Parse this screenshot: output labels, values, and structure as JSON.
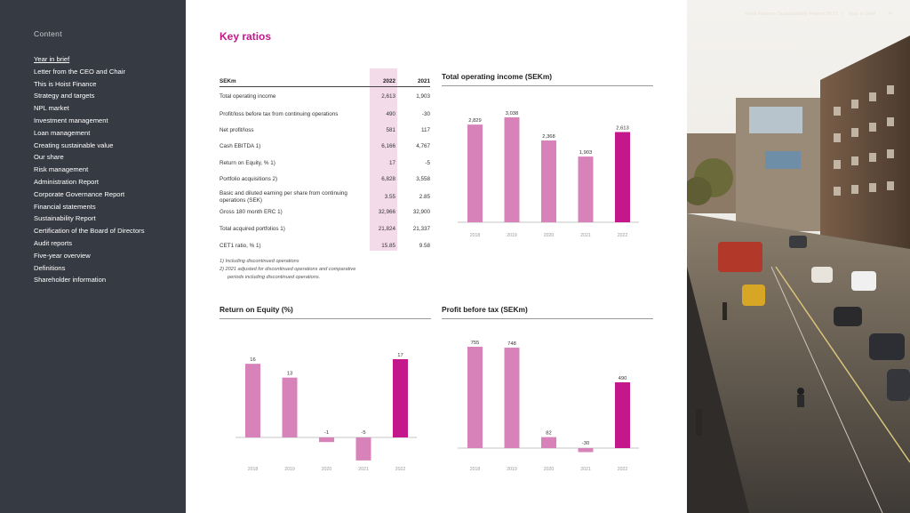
{
  "sidebar": {
    "title": "Content",
    "items": [
      {
        "label": "Year in brief",
        "active": true
      },
      {
        "label": "Letter from the CEO and Chair"
      },
      {
        "label": "This is Hoist Finance"
      },
      {
        "label": "Strategy and targets"
      },
      {
        "label": "NPL market"
      },
      {
        "label": "Investment management"
      },
      {
        "label": "Loan management"
      },
      {
        "label": "Creating sustainable value"
      },
      {
        "label": "Our share"
      },
      {
        "label": "Risk management"
      },
      {
        "label": "Administration Report"
      },
      {
        "label": "Corporate Governance Report"
      },
      {
        "label": "Financial statements"
      },
      {
        "label": "Sustainability Report"
      },
      {
        "label": "Certification of the Board of Directors"
      },
      {
        "label": "Audit reports"
      },
      {
        "label": "Five-year overview"
      },
      {
        "label": "Definitions"
      },
      {
        "label": "Shareholder information"
      }
    ]
  },
  "header": {
    "doc_title": "Hoist Finance Sustainability Report 2022",
    "section": "Year in brief",
    "page_number": "4"
  },
  "title": "Key ratios",
  "table": {
    "headers": [
      "SEKm",
      "2022",
      "2021"
    ],
    "rows": [
      {
        "label": "Total operating income",
        "v2022": "2,613",
        "v2021": "1,903"
      },
      {
        "label": "Profit/loss before tax from continuing operations",
        "v2022": "490",
        "v2021": "-30"
      },
      {
        "label": "Net profit/loss",
        "v2022": "581",
        "v2021": "117"
      },
      {
        "label": "Cash EBITDA 1)",
        "v2022": "6,166",
        "v2021": "4,767"
      },
      {
        "label": "Return on Equity, % 1)",
        "v2022": "17",
        "v2021": "-5"
      },
      {
        "label": "Portfolio acquisitions 2)",
        "v2022": "6,828",
        "v2021": "3,558"
      },
      {
        "label": "Basic and diluted earning per share from continuing operations (SEK)",
        "v2022": "3.55",
        "v2021": "2.85"
      },
      {
        "label": "Gross 180 month ERC 1)",
        "v2022": "32,966",
        "v2021": "32,900"
      },
      {
        "label": "Total acquired portfolios 1)",
        "v2022": "21,824",
        "v2021": "21,337"
      },
      {
        "label": "CET1 ratio, % 1)",
        "v2022": "15.85",
        "v2021": "9.58"
      }
    ],
    "footnotes": [
      "1)  Including discontinued operations",
      "2)  2021 adjusted for discontinued operations and comparative",
      "periods including discontinued operations."
    ]
  },
  "colors": {
    "light_bar": "#d783b9",
    "highlight_bar": "#c4178b",
    "accent": "#c4178b",
    "sidebar": "#363a43"
  },
  "chart_data": [
    {
      "id": "total-operating-income",
      "type": "bar",
      "title": "Total operating income (SEKm)",
      "categories": [
        "2018",
        "2019",
        "2020",
        "2021",
        "2022"
      ],
      "values": [
        2829,
        3038,
        2368,
        1903,
        2613
      ],
      "value_labels": [
        "2,829",
        "3,038",
        "2,368",
        "1,903",
        "2,613"
      ],
      "highlight_index": 4
    },
    {
      "id": "return-on-equity",
      "type": "bar",
      "title": "Return on Equity (%)",
      "categories": [
        "2018",
        "2019",
        "2020",
        "2021",
        "2022"
      ],
      "values": [
        16,
        13,
        -1,
        -5,
        17
      ],
      "value_labels": [
        "16",
        "13",
        "-1",
        "-5",
        "17"
      ],
      "highlight_index": 4
    },
    {
      "id": "profit-before-tax",
      "type": "bar",
      "title": "Profit before tax (SEKm)",
      "categories": [
        "2018",
        "2019",
        "2020",
        "2021",
        "2022"
      ],
      "values": [
        755,
        748,
        82,
        -30,
        490
      ],
      "value_labels": [
        "755",
        "748",
        "82",
        "-30",
        "490"
      ],
      "highlight_index": 4
    }
  ]
}
